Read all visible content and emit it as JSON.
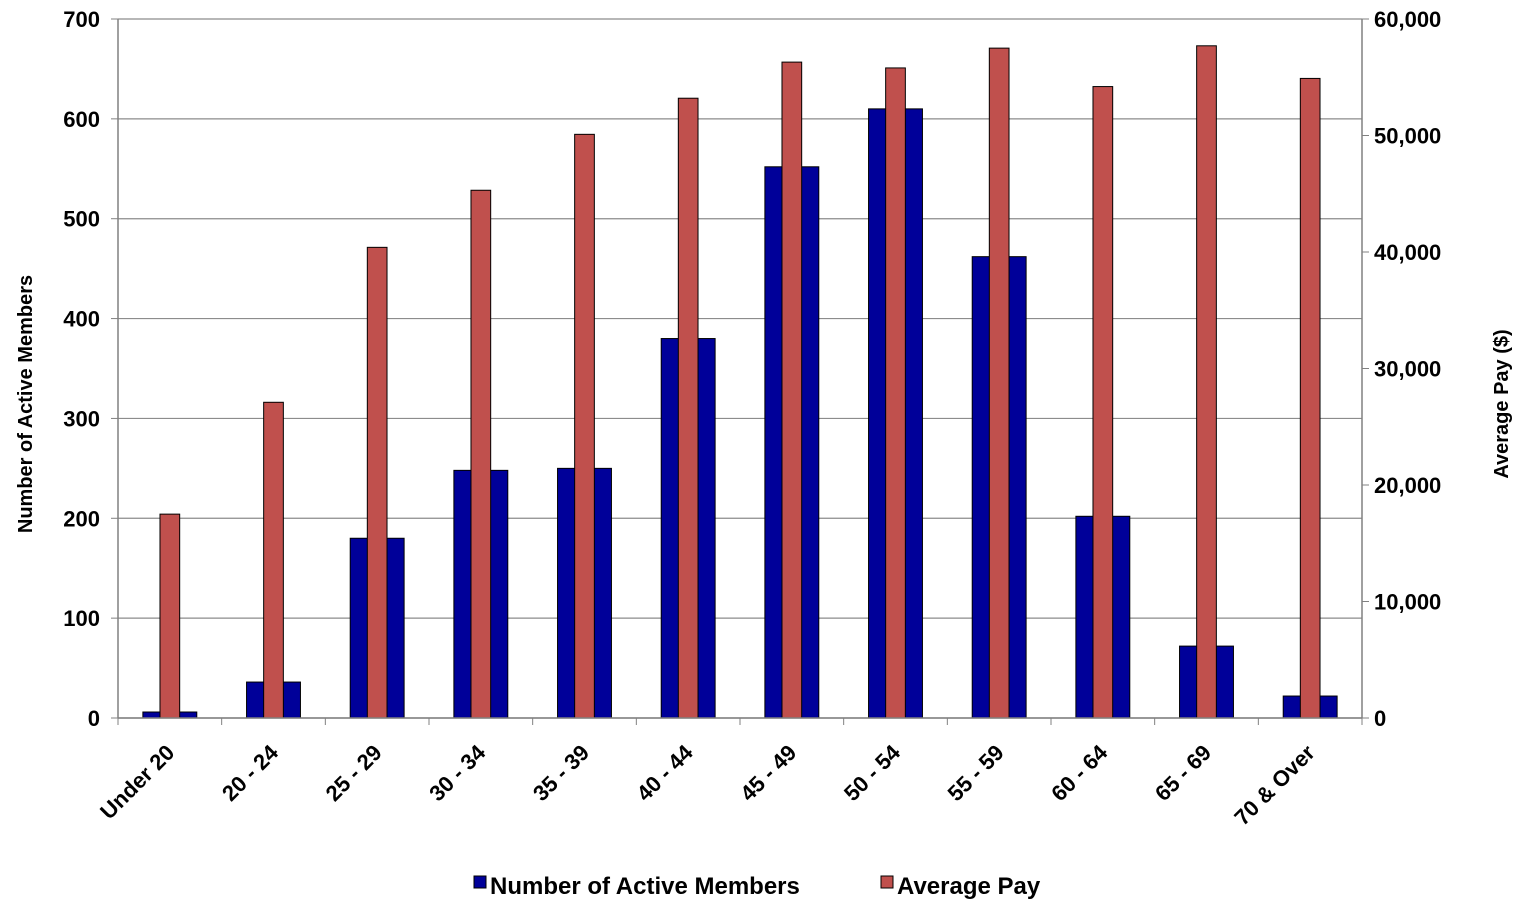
{
  "chart_data": {
    "type": "bar",
    "categories": [
      "Under 20",
      "20 - 24",
      "25 - 29",
      "30 - 34",
      "35 - 39",
      "40 - 44",
      "45 - 49",
      "50 - 54",
      "55 - 59",
      "60 - 64",
      "65 - 69",
      "70 & Over"
    ],
    "series": [
      {
        "name": "Number of Active Members",
        "axis": "left",
        "color": "#000099",
        "values": [
          6,
          36,
          180,
          248,
          250,
          380,
          552,
          610,
          462,
          202,
          72,
          22
        ]
      },
      {
        "name": "Average Pay",
        "axis": "right",
        "color": "#c0504d",
        "values": [
          17500,
          27100,
          40400,
          45300,
          50100,
          53200,
          56300,
          55800,
          57500,
          54200,
          57700,
          54900
        ]
      }
    ],
    "ylabel": "Number of Active Members",
    "y2label": "Average Pay ($)",
    "ylim": [
      0,
      700
    ],
    "y2lim": [
      0,
      60000
    ],
    "yticks": [
      "0",
      "100",
      "200",
      "300",
      "400",
      "500",
      "600",
      "700"
    ],
    "y2ticks": [
      "0",
      "10,000",
      "20,000",
      "30,000",
      "40,000",
      "50,000",
      "60,000"
    ],
    "grid": true,
    "legend": "bottom"
  }
}
